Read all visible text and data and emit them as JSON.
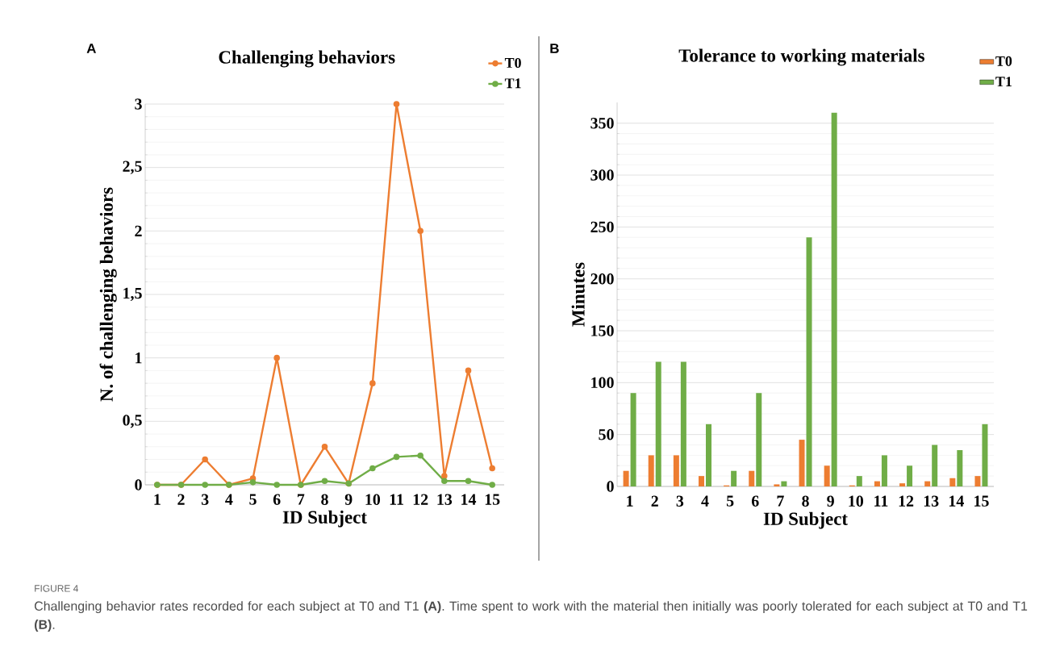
{
  "chart_data": [
    {
      "type": "line",
      "title": "Challenging behaviors",
      "xlabel": "ID Subject",
      "ylabel": "N. of challenging behaviors",
      "categories": [
        "1",
        "2",
        "3",
        "4",
        "5",
        "6",
        "7",
        "8",
        "9",
        "10",
        "11",
        "12",
        "13",
        "14",
        "15"
      ],
      "series": [
        {
          "name": "T0",
          "color": "#ed7d31",
          "values": [
            0,
            0,
            0.2,
            0,
            0.05,
            1,
            0,
            0.3,
            0.01,
            0.8,
            3,
            2,
            0.07,
            0.9,
            0.13
          ]
        },
        {
          "name": "T1",
          "color": "#70ad47",
          "values": [
            0,
            0,
            0,
            0,
            0.02,
            0,
            0,
            0.03,
            0.01,
            0.13,
            0.22,
            0.23,
            0.03,
            0.03,
            0
          ]
        }
      ],
      "ylim": [
        0,
        3
      ],
      "yticks": [
        0,
        {
          "value": 0.5,
          "label": "0,5"
        },
        1,
        {
          "value": 1.5,
          "label": "1,5"
        },
        2,
        {
          "value": 2.5,
          "label": "2,5"
        },
        3
      ],
      "grid": "y",
      "legend": "top right",
      "marker": "circle",
      "line_style": "solid",
      "annotations": [
        "A",
        "FIGURE 4",
        "Challenging behavior rates recorded for each subject at T0 and T1 **(A)**. Time spent to work with the material then initially was poorly tolerated for each subject at T0 and T1 **(B)**."
      ]
    },
    {
      "type": "bar",
      "title": "Tolerance to working materials",
      "xlabel": "ID Subject",
      "ylabel": "Minutes",
      "categories": [
        "1",
        "2",
        "3",
        "4",
        "5",
        "6",
        "7",
        "8",
        "9",
        "10",
        "11",
        "12",
        "13",
        "14",
        "15"
      ],
      "series": [
        {
          "name": "T0",
          "color": "#ed7d31",
          "values": [
            15,
            30,
            30,
            10,
            1,
            15,
            2,
            45,
            20,
            1,
            5,
            3,
            5,
            8,
            10
          ]
        },
        {
          "name": "T1",
          "color": "#70ad47",
          "values": [
            90,
            120,
            120,
            60,
            15,
            90,
            5,
            240,
            360,
            10,
            30,
            20,
            40,
            35,
            60
          ]
        }
      ],
      "ylim": [
        0,
        370
      ],
      "yticks": [
        0,
        50,
        100,
        150,
        200,
        250,
        300,
        350
      ],
      "grid": "y",
      "legend": "top right",
      "annotations": [
        "B"
      ]
    }
  ]
}
